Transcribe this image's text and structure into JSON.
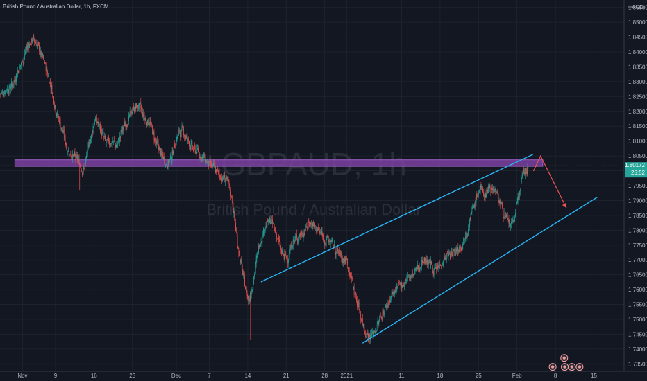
{
  "header": {
    "title": "British Pound / Australian Dollar, 1h, FXCM"
  },
  "watermark": {
    "symbol": "GBPAUD, 1h",
    "name": "British Pound / Australian Dollar"
  },
  "price_axis": {
    "currency": "AUD"
  },
  "current_price": {
    "value": "1.80172",
    "countdown": "25:52",
    "color": "#26a69a"
  },
  "colors": {
    "background": "#131722",
    "bull": "#26a69a",
    "bear": "#ef5350",
    "trendline": "#29b6f6",
    "zone": "#7b3fa0",
    "arrow": "#ef5350"
  },
  "chart_data": {
    "type": "candlestick",
    "instrument": "GBPAUD",
    "timeframe": "1h",
    "ylim": [
      1.7325,
      1.8575
    ],
    "y_ticks": [
      "1.73500",
      "1.74000",
      "1.74500",
      "1.75000",
      "1.75500",
      "1.76000",
      "1.76500",
      "1.77000",
      "1.77500",
      "1.78000",
      "1.78500",
      "1.79000",
      "1.79500",
      "1.80000",
      "1.80500",
      "1.81000",
      "1.81500",
      "1.82000",
      "1.82500",
      "1.83000",
      "1.83500",
      "1.84000",
      "1.84500",
      "1.85000",
      "1.85500"
    ],
    "x_ticks": [
      {
        "label": "Nov",
        "t": 0.9
      },
      {
        "label": "9",
        "t": 6.9
      },
      {
        "label": "16",
        "t": 13.9
      },
      {
        "label": "23",
        "t": 20.9
      },
      {
        "label": "Dec",
        "t": 28.9
      },
      {
        "label": "7",
        "t": 34.9
      },
      {
        "label": "14",
        "t": 41.9
      },
      {
        "label": "21",
        "t": 48.9
      },
      {
        "label": "28",
        "t": 55.9
      },
      {
        "label": "2021",
        "t": 59.9
      },
      {
        "label": "11",
        "t": 69.9
      },
      {
        "label": "18",
        "t": 76.9
      },
      {
        "label": "25",
        "t": 83.9
      },
      {
        "label": "Feb",
        "t": 90.9
      },
      {
        "label": "8",
        "t": 97.9
      },
      {
        "label": "15",
        "t": 104.9
      }
    ],
    "x_domain": [
      -3.2,
      110.4
    ],
    "price_path": [
      [
        -3.2,
        1.826
      ],
      [
        -1,
        1.829
      ],
      [
        0,
        1.834
      ],
      [
        1,
        1.838
      ],
      [
        2,
        1.843
      ],
      [
        3,
        1.8445
      ],
      [
        4,
        1.84
      ],
      [
        5,
        1.835
      ],
      [
        6,
        1.829
      ],
      [
        7,
        1.82
      ],
      [
        8,
        1.814
      ],
      [
        9,
        1.807
      ],
      [
        10,
        1.805
      ],
      [
        11,
        1.803
      ],
      [
        12,
        1.8
      ],
      [
        13,
        1.809
      ],
      [
        14,
        1.818
      ],
      [
        15,
        1.814
      ],
      [
        16,
        1.809
      ],
      [
        17,
        1.81
      ],
      [
        18,
        1.808
      ],
      [
        19,
        1.814
      ],
      [
        20,
        1.817
      ],
      [
        21,
        1.821
      ],
      [
        22,
        1.822
      ],
      [
        23,
        1.818
      ],
      [
        24,
        1.816
      ],
      [
        25,
        1.81
      ],
      [
        26,
        1.806
      ],
      [
        27,
        1.802
      ],
      [
        28,
        1.805
      ],
      [
        29,
        1.812
      ],
      [
        30,
        1.814
      ],
      [
        31,
        1.81
      ],
      [
        32,
        1.807
      ],
      [
        33,
        1.806
      ],
      [
        34,
        1.804
      ],
      [
        35,
        1.802
      ],
      [
        36,
        1.8
      ],
      [
        37,
        1.798
      ],
      [
        38,
        1.797
      ],
      [
        39,
        1.79
      ],
      [
        40,
        1.775
      ],
      [
        41,
        1.764
      ],
      [
        42,
        1.756
      ],
      [
        43,
        1.765
      ],
      [
        44,
        1.776
      ],
      [
        45,
        1.782
      ],
      [
        46,
        1.783
      ],
      [
        47,
        1.779
      ],
      [
        48,
        1.772
      ],
      [
        49,
        1.77
      ],
      [
        50,
        1.776
      ],
      [
        51,
        1.778
      ],
      [
        52,
        1.779
      ],
      [
        53,
        1.783
      ],
      [
        54,
        1.781
      ],
      [
        55,
        1.779
      ],
      [
        56,
        1.777
      ],
      [
        57,
        1.776
      ],
      [
        58,
        1.773
      ],
      [
        59,
        1.771
      ],
      [
        60,
        1.769
      ],
      [
        61,
        1.761
      ],
      [
        62,
        1.754
      ],
      [
        63,
        1.747
      ],
      [
        64,
        1.744
      ],
      [
        65,
        1.746
      ],
      [
        66,
        1.751
      ],
      [
        67,
        1.754
      ],
      [
        68,
        1.758
      ],
      [
        69,
        1.76
      ],
      [
        70,
        1.762
      ],
      [
        71,
        1.764
      ],
      [
        72,
        1.765
      ],
      [
        73,
        1.768
      ],
      [
        74,
        1.77
      ],
      [
        75,
        1.769
      ],
      [
        76,
        1.766
      ],
      [
        77,
        1.769
      ],
      [
        78,
        1.771
      ],
      [
        79,
        1.772
      ],
      [
        80,
        1.774
      ],
      [
        81,
        1.776
      ],
      [
        82,
        1.782
      ],
      [
        83,
        1.788
      ],
      [
        84,
        1.794
      ],
      [
        85,
        1.792
      ],
      [
        86,
        1.795
      ],
      [
        87,
        1.793
      ],
      [
        88,
        1.788
      ],
      [
        89,
        1.783
      ],
      [
        90,
        1.781
      ],
      [
        91,
        1.791
      ],
      [
        92,
        1.799
      ],
      [
        93,
        1.8017
      ]
    ],
    "annotations": {
      "resistance_zone": {
        "y_top": 1.8037,
        "y_bottom": 1.8015,
        "t_start": -0.5,
        "t_end": 95.6,
        "label": ""
      },
      "upper_trendline": {
        "p1": [
          44.3,
          1.7626
        ],
        "p2": [
          93.8,
          1.8055
        ]
      },
      "lower_trendline": {
        "p1": [
          62.8,
          1.742
        ],
        "p2": [
          105.5,
          1.7911
        ]
      },
      "projection_arrow": [
        [
          93.9,
          1.7999
        ],
        [
          95.2,
          1.805
        ],
        [
          99.9,
          1.7875
        ]
      ],
      "countdown_label": "25:52"
    },
    "event_markers": [
      {
        "t": 97.4,
        "y": 1.734
      },
      {
        "t": 99.5,
        "y": 1.737
      },
      {
        "t": 100.9,
        "y": 1.734
      },
      {
        "t": 99.6,
        "y": 1.734
      },
      {
        "t": 102.3,
        "y": 1.734
      }
    ]
  }
}
